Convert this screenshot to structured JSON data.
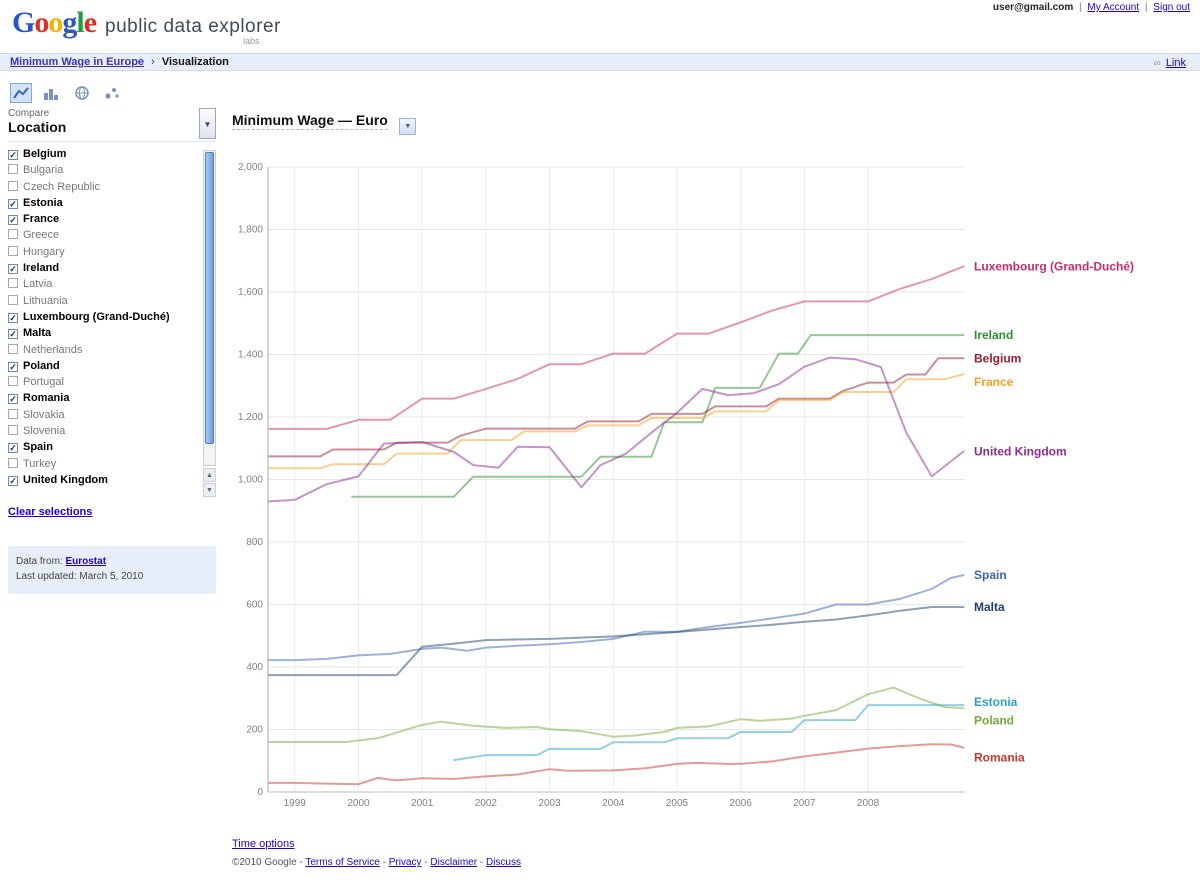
{
  "account_bar": {
    "email": "user@gmail.com",
    "separator": "|",
    "links": [
      "My Account",
      "Sign out"
    ]
  },
  "header": {
    "logo_letters": [
      {
        "ch": "G",
        "c": "#2a56c6"
      },
      {
        "ch": "o",
        "c": "#d93025"
      },
      {
        "ch": "o",
        "c": "#f0b400"
      },
      {
        "ch": "g",
        "c": "#2a56c6"
      },
      {
        "ch": "l",
        "c": "#1e9e3e"
      },
      {
        "ch": "e",
        "c": "#d93025"
      }
    ],
    "product_name": "public data explorer",
    "labs": "labs"
  },
  "breadcrumb": {
    "dataset_link": "Minimum Wage in Europe",
    "separator": "›",
    "current": "Visualization",
    "link_label": "Link"
  },
  "toolbar": {
    "icons": [
      {
        "name": "line-chart",
        "selected": true
      },
      {
        "name": "bar-chart",
        "selected": false
      },
      {
        "name": "map",
        "selected": false
      },
      {
        "name": "bubble-chart",
        "selected": false
      }
    ]
  },
  "sidebar": {
    "compare_label": "Compare",
    "dimension_label": "Location",
    "items": [
      {
        "label": "Belgium",
        "checked": true
      },
      {
        "label": "Bulgaria",
        "checked": false
      },
      {
        "label": "Czech Republic",
        "checked": false
      },
      {
        "label": "Estonia",
        "checked": true
      },
      {
        "label": "France",
        "checked": true
      },
      {
        "label": "Greece",
        "checked": false
      },
      {
        "label": "Hungary",
        "checked": false
      },
      {
        "label": "Ireland",
        "checked": true
      },
      {
        "label": "Latvia",
        "checked": false
      },
      {
        "label": "Lithuania",
        "checked": false
      },
      {
        "label": "Luxembourg (Grand-Duché)",
        "checked": true
      },
      {
        "label": "Malta",
        "checked": true
      },
      {
        "label": "Netherlands",
        "checked": false
      },
      {
        "label": "Poland",
        "checked": true
      },
      {
        "label": "Portugal",
        "checked": false
      },
      {
        "label": "Romania",
        "checked": true
      },
      {
        "label": "Slovakia",
        "checked": false
      },
      {
        "label": "Slovenia",
        "checked": false
      },
      {
        "label": "Spain",
        "checked": true
      },
      {
        "label": "Turkey",
        "checked": false
      },
      {
        "label": "United Kingdom",
        "checked": true
      }
    ],
    "clear_link": "Clear selections",
    "info": {
      "data_from_label": "Data from:",
      "source_link": "Eurostat",
      "last_updated": "Last updated: March 5, 2010"
    }
  },
  "chart_header": {
    "title": "Minimum Wage — Euro"
  },
  "chart_data": {
    "type": "line",
    "title": "Minimum Wage — Euro",
    "xlabel": "",
    "ylabel": "",
    "ylim": [
      0,
      2000
    ],
    "y_tick_step": 200,
    "x_ticks": [
      1999,
      2000,
      2001,
      2002,
      2003,
      2004,
      2005,
      2006,
      2007,
      2008
    ],
    "grid": true,
    "legend_position": "right-inline-labels",
    "units": "EUR per month",
    "series": [
      {
        "name": "Luxembourg (Grand-Duché)",
        "color": "#cb2c68",
        "label_dy": 0,
        "points": [
          [
            1998.6,
            1162
          ],
          [
            1999,
            1162
          ],
          [
            1999.5,
            1162
          ],
          [
            2000,
            1191
          ],
          [
            2000.5,
            1191
          ],
          [
            2001,
            1259
          ],
          [
            2001.5,
            1259
          ],
          [
            2002,
            1290
          ],
          [
            2002.5,
            1322
          ],
          [
            2003,
            1369
          ],
          [
            2003.5,
            1369
          ],
          [
            2004,
            1403
          ],
          [
            2004.5,
            1403
          ],
          [
            2005,
            1467
          ],
          [
            2005.5,
            1467
          ],
          [
            2006,
            1503
          ],
          [
            2006.5,
            1541
          ],
          [
            2007,
            1570
          ],
          [
            2008,
            1570
          ],
          [
            2008.5,
            1610
          ],
          [
            2009,
            1642
          ],
          [
            2009.5,
            1682
          ]
        ]
      },
      {
        "name": "Ireland",
        "color": "#2f8f2f",
        "label_dy": 0,
        "points": [
          [
            1999.9,
            945
          ],
          [
            2001.5,
            945
          ],
          [
            2001.8,
            1009
          ],
          [
            2003.5,
            1009
          ],
          [
            2003.8,
            1073
          ],
          [
            2004.6,
            1073
          ],
          [
            2004.8,
            1183
          ],
          [
            2005.4,
            1183
          ],
          [
            2005.6,
            1293
          ],
          [
            2006.3,
            1293
          ],
          [
            2006.6,
            1403
          ],
          [
            2006.9,
            1403
          ],
          [
            2007.1,
            1462
          ],
          [
            2009.5,
            1462
          ]
        ]
      },
      {
        "name": "Belgium",
        "color": "#9b1c2e",
        "label_dy": 0,
        "points": [
          [
            1998.6,
            1074
          ],
          [
            1999.4,
            1074
          ],
          [
            1999.6,
            1096
          ],
          [
            2000.4,
            1096
          ],
          [
            2000.6,
            1118
          ],
          [
            2001.4,
            1118
          ],
          [
            2001.6,
            1140
          ],
          [
            2002,
            1163
          ],
          [
            2003.4,
            1163
          ],
          [
            2003.6,
            1186
          ],
          [
            2004.4,
            1186
          ],
          [
            2004.6,
            1210
          ],
          [
            2005.4,
            1210
          ],
          [
            2005.6,
            1234
          ],
          [
            2006.4,
            1234
          ],
          [
            2006.6,
            1259
          ],
          [
            2007.4,
            1259
          ],
          [
            2007.6,
            1283
          ],
          [
            2008,
            1310
          ],
          [
            2008.4,
            1310
          ],
          [
            2008.6,
            1336
          ],
          [
            2008.9,
            1336
          ],
          [
            2009.1,
            1388
          ],
          [
            2009.5,
            1388
          ]
        ]
      },
      {
        "name": "France",
        "color": "#ef9f1f",
        "label_dy": 8,
        "points": [
          [
            1998.6,
            1036
          ],
          [
            1999.4,
            1036
          ],
          [
            1999.6,
            1049
          ],
          [
            2000.4,
            1049
          ],
          [
            2000.6,
            1083
          ],
          [
            2001.4,
            1083
          ],
          [
            2001.6,
            1126
          ],
          [
            2002.4,
            1126
          ],
          [
            2002.6,
            1154
          ],
          [
            2003.4,
            1154
          ],
          [
            2003.6,
            1173
          ],
          [
            2004.4,
            1173
          ],
          [
            2004.6,
            1197
          ],
          [
            2005.4,
            1197
          ],
          [
            2005.6,
            1218
          ],
          [
            2006.4,
            1218
          ],
          [
            2006.6,
            1254
          ],
          [
            2007.4,
            1254
          ],
          [
            2007.6,
            1280
          ],
          [
            2008.4,
            1280
          ],
          [
            2008.6,
            1321
          ],
          [
            2009.2,
            1321
          ],
          [
            2009.5,
            1337
          ]
        ]
      },
      {
        "name": "United Kingdom",
        "color": "#8a2b8d",
        "label_dy": 0,
        "points": [
          [
            1998.6,
            930
          ],
          [
            1999,
            935
          ],
          [
            1999.5,
            985
          ],
          [
            2000,
            1010
          ],
          [
            2000.4,
            1115
          ],
          [
            2001,
            1120
          ],
          [
            2001.5,
            1088
          ],
          [
            2001.8,
            1046
          ],
          [
            2002.2,
            1038
          ],
          [
            2002.5,
            1105
          ],
          [
            2003,
            1103
          ],
          [
            2003.5,
            975
          ],
          [
            2003.8,
            1046
          ],
          [
            2004.2,
            1083
          ],
          [
            2004.6,
            1150
          ],
          [
            2005,
            1213
          ],
          [
            2005.4,
            1290
          ],
          [
            2005.8,
            1270
          ],
          [
            2006.2,
            1276
          ],
          [
            2006.6,
            1305
          ],
          [
            2007,
            1361
          ],
          [
            2007.4,
            1390
          ],
          [
            2007.8,
            1385
          ],
          [
            2008.2,
            1360
          ],
          [
            2008.6,
            1150
          ],
          [
            2009,
            1010
          ],
          [
            2009.5,
            1090
          ]
        ]
      },
      {
        "name": "Spain",
        "color": "#3b66b0",
        "label_dy": 0,
        "points": [
          [
            1998.6,
            422
          ],
          [
            1999,
            422
          ],
          [
            1999.5,
            426
          ],
          [
            2000,
            437
          ],
          [
            2000.5,
            442
          ],
          [
            2001,
            458
          ],
          [
            2001.3,
            462
          ],
          [
            2001.7,
            452
          ],
          [
            2002,
            462
          ],
          [
            2002.5,
            468
          ],
          [
            2003,
            473
          ],
          [
            2003.5,
            480
          ],
          [
            2004,
            490
          ],
          [
            2004.5,
            513
          ],
          [
            2005,
            513
          ],
          [
            2005.5,
            528
          ],
          [
            2006,
            541
          ],
          [
            2006.5,
            556
          ],
          [
            2007,
            571
          ],
          [
            2007.5,
            600
          ],
          [
            2008,
            600
          ],
          [
            2008.5,
            618
          ],
          [
            2009,
            650
          ],
          [
            2009.3,
            685
          ],
          [
            2009.5,
            694
          ]
        ]
      },
      {
        "name": "Malta",
        "color": "#1f3e74",
        "label_dy": 0,
        "points": [
          [
            1998.6,
            374
          ],
          [
            2000.6,
            374
          ],
          [
            2001,
            465
          ],
          [
            2001.5,
            475
          ],
          [
            2002,
            486
          ],
          [
            2003,
            490
          ],
          [
            2004,
            498
          ],
          [
            2004.5,
            505
          ],
          [
            2005,
            512
          ],
          [
            2005.5,
            520
          ],
          [
            2006,
            528
          ],
          [
            2006.5,
            535
          ],
          [
            2007,
            545
          ],
          [
            2007.5,
            552
          ],
          [
            2008,
            565
          ],
          [
            2008.5,
            580
          ],
          [
            2009,
            592
          ],
          [
            2009.5,
            592
          ]
        ]
      },
      {
        "name": "Estonia",
        "color": "#2f9ccb",
        "label_dy": -3,
        "points": [
          [
            2001.5,
            102
          ],
          [
            2002,
            118
          ],
          [
            2002.8,
            118
          ],
          [
            2003,
            138
          ],
          [
            2003.8,
            138
          ],
          [
            2004,
            159
          ],
          [
            2004.8,
            159
          ],
          [
            2005,
            172
          ],
          [
            2005.8,
            172
          ],
          [
            2006,
            192
          ],
          [
            2006.8,
            192
          ],
          [
            2007,
            230
          ],
          [
            2007.8,
            230
          ],
          [
            2008,
            278
          ],
          [
            2009.5,
            278
          ]
        ]
      },
      {
        "name": "Poland",
        "color": "#76ab3a",
        "label_dy": 12,
        "points": [
          [
            1998.6,
            160
          ],
          [
            1999.8,
            160
          ],
          [
            2000.3,
            172
          ],
          [
            2001,
            215
          ],
          [
            2001.3,
            225
          ],
          [
            2001.8,
            212
          ],
          [
            2002.3,
            205
          ],
          [
            2002.8,
            208
          ],
          [
            2003,
            201
          ],
          [
            2003.5,
            195
          ],
          [
            2004,
            177
          ],
          [
            2004.3,
            180
          ],
          [
            2004.8,
            192
          ],
          [
            2005,
            205
          ],
          [
            2005.5,
            210
          ],
          [
            2006,
            233
          ],
          [
            2006.3,
            228
          ],
          [
            2006.8,
            235
          ],
          [
            2007,
            244
          ],
          [
            2007.5,
            262
          ],
          [
            2008,
            313
          ],
          [
            2008.4,
            334
          ],
          [
            2008.8,
            300
          ],
          [
            2009.2,
            272
          ],
          [
            2009.5,
            268
          ]
        ]
      },
      {
        "name": "Romania",
        "color": "#c9372b",
        "label_dy": 10,
        "points": [
          [
            1998.6,
            29
          ],
          [
            1999,
            29
          ],
          [
            1999.5,
            27
          ],
          [
            2000,
            25
          ],
          [
            2000.3,
            45
          ],
          [
            2000.6,
            37
          ],
          [
            2001,
            44
          ],
          [
            2001.5,
            42
          ],
          [
            2002,
            50
          ],
          [
            2002.5,
            56
          ],
          [
            2003,
            73
          ],
          [
            2003.3,
            68
          ],
          [
            2004,
            69
          ],
          [
            2004.5,
            76
          ],
          [
            2005,
            90
          ],
          [
            2005.3,
            93
          ],
          [
            2005.8,
            90
          ],
          [
            2006,
            90
          ],
          [
            2006.5,
            98
          ],
          [
            2007,
            114
          ],
          [
            2007.5,
            126
          ],
          [
            2008,
            139
          ],
          [
            2008.5,
            147
          ],
          [
            2009,
            153
          ],
          [
            2009.3,
            152
          ],
          [
            2009.5,
            142
          ]
        ]
      }
    ]
  },
  "footer": {
    "time_options": "Time options",
    "copyright": "©2010 Google",
    "separator": " - ",
    "links": [
      "Terms of Service",
      "Privacy",
      "Disclaimer",
      "Discuss"
    ]
  }
}
